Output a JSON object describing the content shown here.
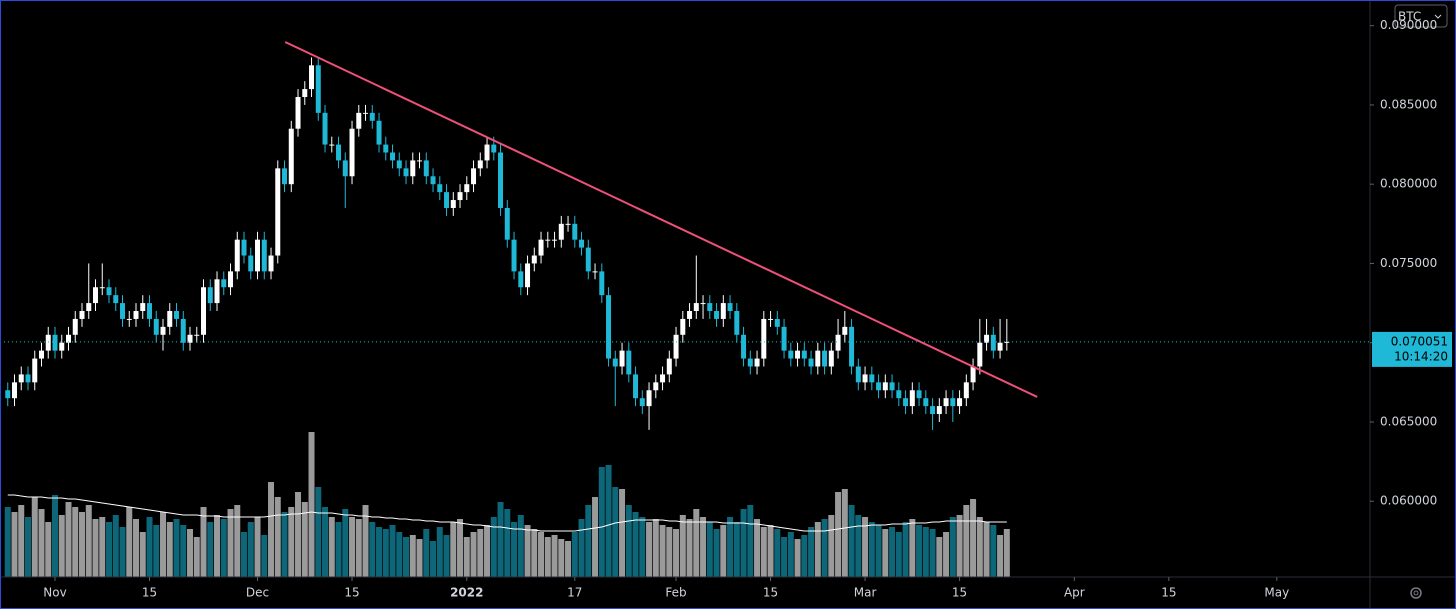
{
  "chart_data": {
    "type": "candlestick",
    "ticker": "BTC",
    "countdown": "10:14:20",
    "xlim": [
      -1.148,
      201.8
    ],
    "ylim": [
      0.05522,
      0.09162
    ],
    "xticks": [
      {
        "value": 7,
        "label": "Nov"
      },
      {
        "value": 21,
        "label": "15"
      },
      {
        "value": 37,
        "label": "Dec"
      },
      {
        "value": 51,
        "label": "15"
      },
      {
        "value": 68,
        "label": "2022"
      },
      {
        "value": 84,
        "label": "17"
      },
      {
        "value": 99,
        "label": "Feb"
      },
      {
        "value": 113,
        "label": "15"
      },
      {
        "value": 127,
        "label": "Mar"
      },
      {
        "value": 141,
        "label": "15"
      },
      {
        "value": 158,
        "label": "Apr"
      },
      {
        "value": 172,
        "label": "15"
      },
      {
        "value": 188,
        "label": "May"
      }
    ],
    "yticks": [
      {
        "value": 0.06,
        "label": "0.060000"
      },
      {
        "value": 0.065,
        "label": "0.065000"
      },
      {
        "value": 0.07,
        "label": "0.070000"
      },
      {
        "value": 0.075,
        "label": "0.075000"
      },
      {
        "value": 0.08,
        "label": "0.080000"
      },
      {
        "value": 0.085,
        "label": "0.085000"
      },
      {
        "value": 0.09,
        "label": "0.090000"
      }
    ],
    "up_color": "#ffffff",
    "down_color": "#1fb8d6",
    "volume_up_color": "#9a9a9a",
    "volume_down_color": "#0e6679",
    "volume_ma_color": "#ffffff",
    "last_price_color": "#1fb8d6",
    "trendline": {
      "color": "#f0507a",
      "points": [
        [
          41.1,
          0.08897
        ],
        [
          152.5,
          0.06658
        ]
      ]
    },
    "ohlc": [
      [
        0.067,
        0.0675,
        0.066,
        0.0665
      ],
      [
        0.0665,
        0.068,
        0.066,
        0.0675
      ],
      [
        0.0675,
        0.0685,
        0.067,
        0.068
      ],
      [
        0.068,
        0.0685,
        0.067,
        0.0675
      ],
      [
        0.0675,
        0.0695,
        0.067,
        0.069
      ],
      [
        0.069,
        0.07,
        0.0685,
        0.0695
      ],
      [
        0.0695,
        0.071,
        0.069,
        0.0705
      ],
      [
        0.0705,
        0.071,
        0.069,
        0.0695
      ],
      [
        0.0695,
        0.0705,
        0.069,
        0.07
      ],
      [
        0.07,
        0.071,
        0.0695,
        0.0705
      ],
      [
        0.0705,
        0.072,
        0.07,
        0.0715
      ],
      [
        0.0715,
        0.0725,
        0.071,
        0.072
      ],
      [
        0.072,
        0.075,
        0.0715,
        0.0725
      ],
      [
        0.0725,
        0.074,
        0.072,
        0.0735
      ],
      [
        0.0735,
        0.075,
        0.073,
        0.0735
      ],
      [
        0.0735,
        0.074,
        0.0725,
        0.073
      ],
      [
        0.073,
        0.0735,
        0.072,
        0.0725
      ],
      [
        0.0725,
        0.073,
        0.071,
        0.0715
      ],
      [
        0.0715,
        0.072,
        0.071,
        0.0715
      ],
      [
        0.0715,
        0.0725,
        0.071,
        0.072
      ],
      [
        0.072,
        0.073,
        0.0715,
        0.0725
      ],
      [
        0.0725,
        0.073,
        0.071,
        0.0715
      ],
      [
        0.0715,
        0.072,
        0.07,
        0.0705
      ],
      [
        0.0705,
        0.0715,
        0.0695,
        0.071
      ],
      [
        0.071,
        0.0725,
        0.0705,
        0.072
      ],
      [
        0.072,
        0.0725,
        0.071,
        0.0715
      ],
      [
        0.0715,
        0.072,
        0.0695,
        0.07
      ],
      [
        0.07,
        0.071,
        0.0695,
        0.0705
      ],
      [
        0.0705,
        0.071,
        0.07,
        0.0705
      ],
      [
        0.0705,
        0.074,
        0.07,
        0.0735
      ],
      [
        0.0735,
        0.074,
        0.072,
        0.0725
      ],
      [
        0.0725,
        0.0745,
        0.072,
        0.074
      ],
      [
        0.074,
        0.0745,
        0.073,
        0.0735
      ],
      [
        0.0735,
        0.075,
        0.073,
        0.0745
      ],
      [
        0.0745,
        0.077,
        0.074,
        0.0765
      ],
      [
        0.0765,
        0.077,
        0.075,
        0.0755
      ],
      [
        0.0755,
        0.076,
        0.074,
        0.0745
      ],
      [
        0.0745,
        0.077,
        0.074,
        0.0765
      ],
      [
        0.0765,
        0.077,
        0.074,
        0.0745
      ],
      [
        0.0745,
        0.076,
        0.074,
        0.0755
      ],
      [
        0.0755,
        0.0815,
        0.075,
        0.081
      ],
      [
        0.081,
        0.0815,
        0.0795,
        0.08
      ],
      [
        0.08,
        0.084,
        0.0795,
        0.0835
      ],
      [
        0.0835,
        0.086,
        0.083,
        0.0855
      ],
      [
        0.0855,
        0.0865,
        0.085,
        0.086
      ],
      [
        0.086,
        0.088,
        0.0855,
        0.0875
      ],
      [
        0.0875,
        0.088,
        0.084,
        0.0845
      ],
      [
        0.0845,
        0.085,
        0.082,
        0.0825
      ],
      [
        0.0825,
        0.083,
        0.082,
        0.0825
      ],
      [
        0.0825,
        0.083,
        0.081,
        0.0815
      ],
      [
        0.0815,
        0.082,
        0.0785,
        0.0805
      ],
      [
        0.0805,
        0.084,
        0.08,
        0.0835
      ],
      [
        0.0835,
        0.085,
        0.083,
        0.0845
      ],
      [
        0.0845,
        0.085,
        0.084,
        0.0845
      ],
      [
        0.0845,
        0.085,
        0.0835,
        0.084
      ],
      [
        0.084,
        0.0845,
        0.082,
        0.0825
      ],
      [
        0.0825,
        0.083,
        0.0815,
        0.082
      ],
      [
        0.082,
        0.0825,
        0.081,
        0.0815
      ],
      [
        0.0815,
        0.082,
        0.0805,
        0.081
      ],
      [
        0.081,
        0.0815,
        0.08,
        0.0805
      ],
      [
        0.0805,
        0.082,
        0.08,
        0.0815
      ],
      [
        0.0815,
        0.082,
        0.081,
        0.0815
      ],
      [
        0.0815,
        0.082,
        0.08,
        0.0805
      ],
      [
        0.0805,
        0.081,
        0.0795,
        0.08
      ],
      [
        0.08,
        0.0805,
        0.079,
        0.0795
      ],
      [
        0.0795,
        0.08,
        0.078,
        0.0785
      ],
      [
        0.0785,
        0.0795,
        0.078,
        0.079
      ],
      [
        0.079,
        0.08,
        0.0785,
        0.0795
      ],
      [
        0.0795,
        0.0805,
        0.079,
        0.08
      ],
      [
        0.08,
        0.0815,
        0.0795,
        0.081
      ],
      [
        0.081,
        0.082,
        0.0805,
        0.0815
      ],
      [
        0.0815,
        0.083,
        0.081,
        0.0825
      ],
      [
        0.0825,
        0.083,
        0.0815,
        0.082
      ],
      [
        0.082,
        0.0825,
        0.078,
        0.0785
      ],
      [
        0.0785,
        0.079,
        0.076,
        0.0765
      ],
      [
        0.0765,
        0.077,
        0.074,
        0.0745
      ],
      [
        0.0745,
        0.075,
        0.073,
        0.0735
      ],
      [
        0.0735,
        0.0755,
        0.073,
        0.075
      ],
      [
        0.075,
        0.076,
        0.0745,
        0.0755
      ],
      [
        0.0755,
        0.077,
        0.075,
        0.0765
      ],
      [
        0.0765,
        0.077,
        0.076,
        0.0765
      ],
      [
        0.0765,
        0.077,
        0.076,
        0.0765
      ],
      [
        0.0765,
        0.078,
        0.076,
        0.0775
      ],
      [
        0.0775,
        0.078,
        0.077,
        0.0775
      ],
      [
        0.0775,
        0.078,
        0.076,
        0.0765
      ],
      [
        0.0765,
        0.077,
        0.0755,
        0.076
      ],
      [
        0.076,
        0.0765,
        0.074,
        0.0745
      ],
      [
        0.0745,
        0.075,
        0.074,
        0.0745
      ],
      [
        0.0745,
        0.075,
        0.0725,
        0.073
      ],
      [
        0.073,
        0.0735,
        0.0685,
        0.069
      ],
      [
        0.069,
        0.0695,
        0.066,
        0.0685
      ],
      [
        0.0685,
        0.07,
        0.068,
        0.0695
      ],
      [
        0.0695,
        0.07,
        0.0675,
        0.068
      ],
      [
        0.068,
        0.0685,
        0.066,
        0.0665
      ],
      [
        0.0665,
        0.067,
        0.0655,
        0.066
      ],
      [
        0.066,
        0.0675,
        0.0645,
        0.067
      ],
      [
        0.067,
        0.068,
        0.0665,
        0.0675
      ],
      [
        0.0675,
        0.0685,
        0.067,
        0.068
      ],
      [
        0.068,
        0.0695,
        0.0675,
        0.069
      ],
      [
        0.069,
        0.071,
        0.0685,
        0.0705
      ],
      [
        0.0705,
        0.072,
        0.07,
        0.0715
      ],
      [
        0.0715,
        0.0725,
        0.071,
        0.072
      ],
      [
        0.072,
        0.0755,
        0.0715,
        0.0725
      ],
      [
        0.0725,
        0.073,
        0.0715,
        0.0725
      ],
      [
        0.0725,
        0.073,
        0.0715,
        0.072
      ],
      [
        0.072,
        0.0725,
        0.071,
        0.0715
      ],
      [
        0.0715,
        0.073,
        0.071,
        0.0725
      ],
      [
        0.0725,
        0.073,
        0.0715,
        0.072
      ],
      [
        0.072,
        0.0725,
        0.07,
        0.0705
      ],
      [
        0.0705,
        0.071,
        0.0685,
        0.069
      ],
      [
        0.069,
        0.0695,
        0.068,
        0.0685
      ],
      [
        0.0685,
        0.0695,
        0.068,
        0.069
      ],
      [
        0.069,
        0.072,
        0.0685,
        0.0715
      ],
      [
        0.0715,
        0.072,
        0.071,
        0.0715
      ],
      [
        0.0715,
        0.072,
        0.0705,
        0.071
      ],
      [
        0.071,
        0.0715,
        0.069,
        0.0695
      ],
      [
        0.0695,
        0.07,
        0.0685,
        0.069
      ],
      [
        0.069,
        0.07,
        0.0685,
        0.0695
      ],
      [
        0.0695,
        0.07,
        0.0685,
        0.069
      ],
      [
        0.069,
        0.0695,
        0.068,
        0.0685
      ],
      [
        0.0685,
        0.07,
        0.068,
        0.0695
      ],
      [
        0.0695,
        0.07,
        0.068,
        0.0685
      ],
      [
        0.0685,
        0.07,
        0.068,
        0.0695
      ],
      [
        0.0695,
        0.0715,
        0.069,
        0.0705
      ],
      [
        0.0705,
        0.072,
        0.07,
        0.071
      ],
      [
        0.071,
        0.0715,
        0.068,
        0.0685
      ],
      [
        0.0685,
        0.069,
        0.067,
        0.0675
      ],
      [
        0.0675,
        0.0685,
        0.067,
        0.068
      ],
      [
        0.068,
        0.0685,
        0.067,
        0.0675
      ],
      [
        0.0675,
        0.068,
        0.0665,
        0.067
      ],
      [
        0.067,
        0.068,
        0.0665,
        0.0675
      ],
      [
        0.0675,
        0.068,
        0.0665,
        0.067
      ],
      [
        0.067,
        0.0675,
        0.066,
        0.0665
      ],
      [
        0.0665,
        0.067,
        0.0655,
        0.066
      ],
      [
        0.066,
        0.0675,
        0.0655,
        0.067
      ],
      [
        0.067,
        0.0675,
        0.066,
        0.0665
      ],
      [
        0.0665,
        0.067,
        0.0655,
        0.066
      ],
      [
        0.066,
        0.0665,
        0.0645,
        0.0655
      ],
      [
        0.0655,
        0.0665,
        0.065,
        0.066
      ],
      [
        0.066,
        0.067,
        0.0655,
        0.0665
      ],
      [
        0.0665,
        0.067,
        0.065,
        0.066
      ],
      [
        0.066,
        0.067,
        0.0655,
        0.0665
      ],
      [
        0.0665,
        0.068,
        0.066,
        0.0675
      ],
      [
        0.0675,
        0.069,
        0.067,
        0.0685
      ],
      [
        0.0685,
        0.0715,
        0.068,
        0.07
      ],
      [
        0.07,
        0.0715,
        0.0695,
        0.0705
      ],
      [
        0.0705,
        0.071,
        0.069,
        0.0695
      ],
      [
        0.0695,
        0.0715,
        0.069,
        0.07
      ],
      [
        0.07,
        0.0715,
        0.0695,
        0.070051
      ]
    ],
    "volume": [
      70,
      65,
      72,
      60,
      80,
      68,
      55,
      82,
      62,
      75,
      70,
      65,
      72,
      58,
      60,
      55,
      62,
      50,
      70,
      58,
      45,
      60,
      52,
      65,
      55,
      58,
      52,
      48,
      40,
      70,
      55,
      62,
      58,
      68,
      72,
      45,
      55,
      60,
      42,
      95,
      80,
      65,
      70,
      85,
      75,
      145,
      90,
      70,
      60,
      55,
      68,
      60,
      58,
      72,
      55,
      50,
      48,
      52,
      45,
      40,
      42,
      38,
      48,
      36,
      50,
      42,
      55,
      58,
      40,
      45,
      48,
      52,
      60,
      75,
      68,
      55,
      62,
      52,
      48,
      45,
      40,
      42,
      38,
      36,
      45,
      58,
      72,
      80,
      110,
      112,
      90,
      88,
      72,
      65,
      60,
      55,
      58,
      52,
      50,
      48,
      62,
      58,
      68,
      60,
      55,
      48,
      52,
      60,
      55,
      68,
      72,
      58,
      50,
      52,
      48,
      40,
      45,
      38,
      42,
      50,
      55,
      58,
      62,
      85,
      88,
      72,
      62,
      60,
      55,
      52,
      48,
      50,
      45,
      55,
      58,
      52,
      50,
      48,
      40,
      45,
      60,
      62,
      72,
      78,
      60,
      55,
      52,
      42,
      48
    ],
    "volume_ma": [
      82,
      82,
      81,
      80,
      80,
      80,
      79,
      79,
      79,
      78,
      78,
      77,
      76,
      75,
      74,
      73,
      72,
      71,
      70,
      69,
      68,
      67,
      66,
      65,
      64,
      63,
      62,
      62,
      62,
      61,
      61,
      61,
      60,
      60,
      60,
      60,
      60,
      60,
      60,
      61,
      62,
      62,
      63,
      63,
      64,
      65,
      64,
      64,
      64,
      63,
      62,
      62,
      61,
      61,
      60,
      60,
      59,
      59,
      58,
      58,
      57,
      57,
      56,
      56,
      55,
      55,
      55,
      54,
      53,
      52,
      52,
      51,
      50,
      50,
      49,
      48,
      48,
      47,
      47,
      46,
      46,
      46,
      46,
      46,
      46,
      47,
      48,
      49,
      50,
      52,
      54,
      55,
      56,
      57,
      57,
      57,
      57,
      57,
      56,
      56,
      55,
      55,
      55,
      55,
      55,
      55,
      54,
      54,
      54,
      54,
      53,
      53,
      52,
      51,
      50,
      49,
      48,
      47,
      46,
      46,
      46,
      46,
      47,
      48,
      49,
      50,
      51,
      51,
      52,
      52,
      52,
      53,
      53,
      53,
      54,
      54,
      54,
      55,
      55,
      56,
      56,
      56,
      56,
      56,
      56,
      55,
      55,
      55,
      55
    ]
  }
}
